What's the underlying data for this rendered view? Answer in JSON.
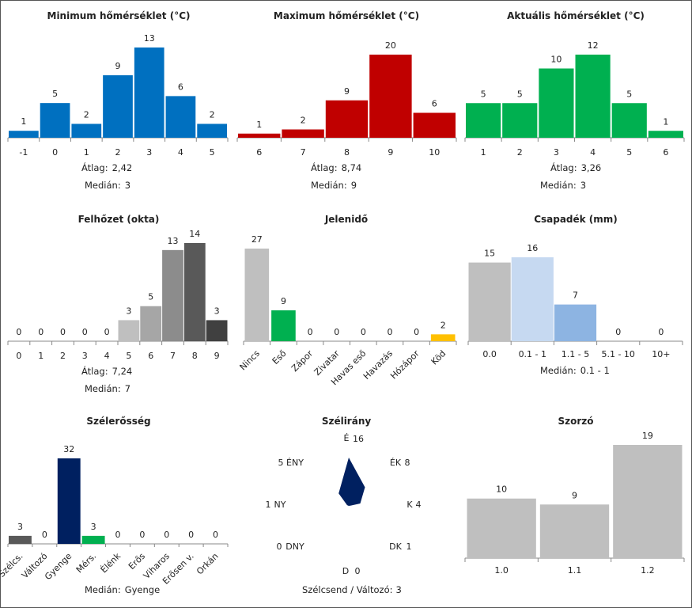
{
  "stats_labels": {
    "mean": "Átlag:",
    "median": "Medián:"
  },
  "chart_data": [
    {
      "type": "bar",
      "title": "Minimum hőmérséklet (°C)",
      "categories": [
        "-1",
        "0",
        "1",
        "2",
        "3",
        "4",
        "5"
      ],
      "values": [
        1,
        5,
        2,
        9,
        13,
        6,
        2
      ],
      "colors": [
        "#0070C0"
      ],
      "ylim": [
        0,
        13
      ],
      "mean": "2,42",
      "median": "3"
    },
    {
      "type": "bar",
      "title": "Maximum hőmérséklet (°C)",
      "categories": [
        "6",
        "7",
        "8",
        "9",
        "10"
      ],
      "values": [
        1,
        2,
        9,
        20,
        6
      ],
      "colors": [
        "#C00000"
      ],
      "ylim": [
        0,
        20
      ],
      "mean": "8,74",
      "median": "9"
    },
    {
      "type": "bar",
      "title": "Aktuális hőmérséklet (°C)",
      "categories": [
        "1",
        "2",
        "3",
        "4",
        "5",
        "6"
      ],
      "values": [
        5,
        5,
        10,
        12,
        5,
        1
      ],
      "colors": [
        "#00B050"
      ],
      "ylim": [
        0,
        12
      ],
      "mean": "3,26",
      "median": "3"
    },
    {
      "type": "bar",
      "title": "Felhőzet (okta)",
      "categories": [
        "0",
        "1",
        "2",
        "3",
        "4",
        "5",
        "6",
        "7",
        "8",
        "9"
      ],
      "values": [
        0,
        0,
        0,
        0,
        0,
        3,
        5,
        13,
        14,
        3
      ],
      "colors": [
        "#bfbfbf",
        "#bfbfbf",
        "#bfbfbf",
        "#bfbfbf",
        "#bfbfbf",
        "#bfbfbf",
        "#a6a6a6",
        "#8c8c8c",
        "#595959",
        "#404040"
      ],
      "ylim": [
        0,
        14
      ],
      "mean": "7,24",
      "median": "7"
    },
    {
      "type": "bar",
      "title": "Jelenidő",
      "categories": [
        "Nincs",
        "Eső",
        "Zápor",
        "Zivatar",
        "Havas eső",
        "Havazás",
        "Hózápor",
        "Köd"
      ],
      "values": [
        27,
        9,
        0,
        0,
        0,
        0,
        0,
        2
      ],
      "colors": [
        "#bfbfbf",
        "#00B050",
        "#bfbfbf",
        "#bfbfbf",
        "#bfbfbf",
        "#bfbfbf",
        "#bfbfbf",
        "#FFC000"
      ],
      "ylim": [
        0,
        27
      ],
      "rotated": true
    },
    {
      "type": "bar",
      "title": "Csapadék (mm)",
      "categories": [
        "0.0",
        "0.1 - 1",
        "1.1 - 5",
        "5.1 - 10",
        "10+"
      ],
      "values": [
        15,
        16,
        7,
        0,
        0
      ],
      "colors": [
        "#bfbfbf",
        "#C6D9F1",
        "#8DB4E2",
        "#bfbfbf",
        "#bfbfbf"
      ],
      "ylim": [
        0,
        16
      ],
      "median": "0.1 - 1"
    },
    {
      "type": "bar",
      "title": "Szélerősség",
      "categories": [
        "Szélcs.",
        "Változó",
        "Gyenge",
        "Mérs.",
        "Élénk",
        "Erős",
        "Viharos",
        "Erősen v.",
        "Orkán"
      ],
      "values": [
        3,
        0,
        32,
        3,
        0,
        0,
        0,
        0,
        0
      ],
      "colors": [
        "#595959",
        "#bfbfbf",
        "#002060",
        "#00B050",
        "#bfbfbf",
        "#bfbfbf",
        "#bfbfbf",
        "#bfbfbf",
        "#bfbfbf"
      ],
      "ylim": [
        0,
        32
      ],
      "rotated": true,
      "median": "Gyenge"
    },
    {
      "type": "radar",
      "title": "Szélirány",
      "directions": [
        "É",
        "ÉK",
        "K",
        "DK",
        "D",
        "DNY",
        "NY",
        "ÉNY"
      ],
      "values": [
        16,
        8,
        4,
        1,
        0,
        0,
        1,
        5
      ],
      "colors": [
        "#002060"
      ],
      "footer": "Szélcsend / Változó:",
      "footer_value": "3"
    },
    {
      "type": "bar",
      "title": "Szorzó",
      "categories": [
        "1.0",
        "1.1",
        "1.2"
      ],
      "values": [
        10,
        9,
        19
      ],
      "colors": [
        "#bfbfbf"
      ],
      "ylim": [
        0,
        19
      ]
    }
  ]
}
